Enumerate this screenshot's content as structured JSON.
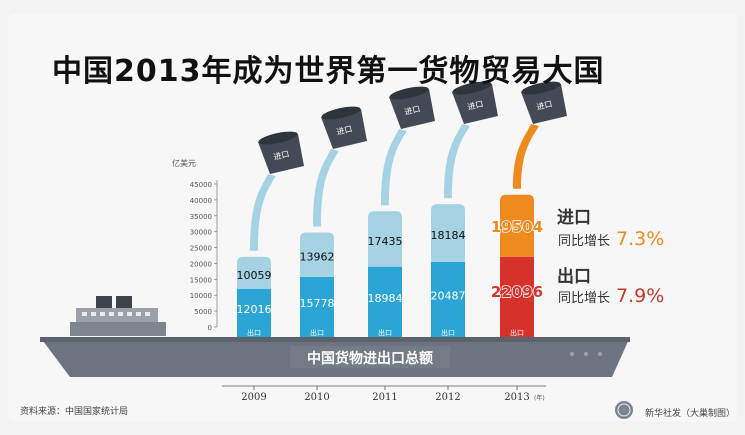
{
  "title": "中国2013年成为世界第一货物贸易大国",
  "unit": "亿美元",
  "source": "资料来源：中国国家统计局",
  "credit": "新华社发（大巢制图）",
  "ship_label": "中国货物进出口总额",
  "legend": {
    "import": {
      "title": "进口",
      "growth_label": "同比增长",
      "growth_value": "7.3%"
    },
    "export": {
      "title": "出口",
      "growth_label": "同比增长",
      "growth_value": "7.9%"
    }
  },
  "colors": {
    "export_past": "#2aa5d6",
    "import_past": "#a6d3e3",
    "export_2013": "#d7312b",
    "import_2013": "#ee8a1e",
    "bucket": "#434a55",
    "ship": "#6b7480",
    "import_pct": "#ee8a1e",
    "export_pct": "#c0392b"
  },
  "chart_data": {
    "type": "bar",
    "stacked": true,
    "categories": [
      "2009",
      "2010",
      "2011",
      "2012",
      "2013"
    ],
    "x_suffix": "(年)",
    "series": [
      {
        "name": "出口",
        "values": [
          12016,
          15778,
          18984,
          20487,
          22096
        ]
      },
      {
        "name": "进口",
        "values": [
          10059,
          13962,
          17435,
          18184,
          19504
        ]
      }
    ],
    "bucket_label": "进口",
    "base_label": "出口",
    "ylim": [
      0,
      45000
    ],
    "yticks": [
      0,
      5000,
      10000,
      15000,
      20000,
      25000,
      30000,
      35000,
      40000,
      45000
    ],
    "ylabel": "亿美元"
  }
}
